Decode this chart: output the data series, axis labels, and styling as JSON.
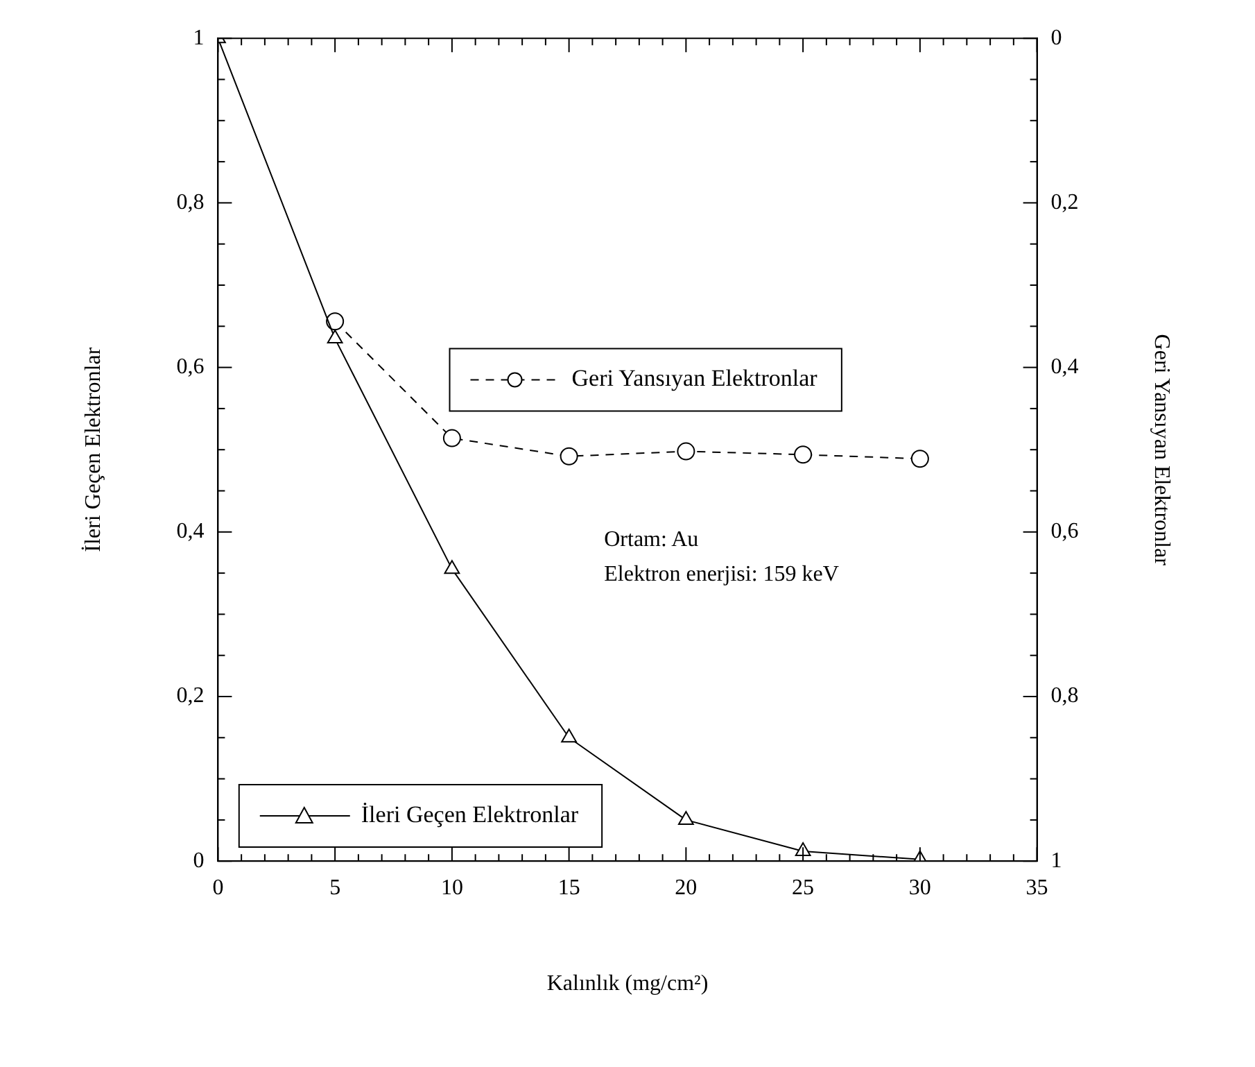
{
  "chart_data": {
    "type": "line",
    "xlabel": "Kalınlık (mg/cm²)",
    "ylabel": "İleri Geçen Elektronlar",
    "y2label": "Geri Yansıyan Elektronlar",
    "annotations": [
      "Ortam: Au",
      "Elektron enerjisi: 159 keV"
    ],
    "legend": "bottom left",
    "x": [
      0,
      5,
      10,
      15,
      20,
      25,
      30
    ],
    "series": [
      {
        "name": "İleri Geçen Elektronlar",
        "color": "#000000",
        "marker": "triangle",
        "line_style": "solid",
        "values": [
          1,
          0.635,
          0.355,
          0.15,
          0.05,
          0.012,
          0.002
        ]
      },
      {
        "name": "Geri Yansıyan Elektronlar",
        "color": "#000000",
        "marker": "circle",
        "line_style": "dashed",
        "axis": "y2",
        "x": [
          5,
          10,
          15,
          20,
          25,
          30
        ],
        "values": [
          0.344,
          0.486,
          0.508,
          0.502,
          0.506,
          0.511
        ]
      }
    ],
    "xlim": [
      0,
      35
    ],
    "xticks": [
      0,
      {
        "value": 1,
        "label": null
      },
      {
        "value": 2,
        "label": null
      },
      {
        "value": 3,
        "label": null
      },
      {
        "value": 4,
        "label": null
      },
      5,
      {
        "value": 6,
        "label": null
      },
      {
        "value": 7,
        "label": null
      },
      {
        "value": 8,
        "label": null
      },
      {
        "value": 9,
        "label": null
      },
      10,
      {
        "value": 11,
        "label": null
      },
      {
        "value": 12,
        "label": null
      },
      {
        "value": 13,
        "label": null
      },
      {
        "value": 14,
        "label": null
      },
      15,
      {
        "value": 16,
        "label": null
      },
      {
        "value": 17,
        "label": null
      },
      {
        "value": 18,
        "label": null
      },
      {
        "value": 19,
        "label": null
      },
      20,
      {
        "value": 21,
        "label": null
      },
      {
        "value": 22,
        "label": null
      },
      {
        "value": 23,
        "label": null
      },
      {
        "value": 24,
        "label": null
      },
      25,
      {
        "value": 26,
        "label": null
      },
      {
        "value": 27,
        "label": null
      },
      {
        "value": 28,
        "label": null
      },
      {
        "value": 29,
        "label": null
      },
      30,
      {
        "value": 31,
        "label": null
      },
      {
        "value": 32,
        "label": null
      },
      {
        "value": 33,
        "label": null
      },
      {
        "value": 34,
        "label": null
      },
      35
    ],
    "ylim": [
      0,
      1
    ],
    "yticks": [
      0,
      {
        "value": 0.05,
        "label": null
      },
      {
        "value": 0.1,
        "label": null
      },
      {
        "value": 0.15,
        "label": null
      },
      {
        "value": 0.2,
        "label": "0,2"
      },
      {
        "value": 0.25,
        "label": null
      },
      {
        "value": 0.3,
        "label": null
      },
      {
        "value": 0.35,
        "label": null
      },
      {
        "value": 0.4,
        "label": "0,4"
      },
      {
        "value": 0.45,
        "label": null
      },
      {
        "value": 0.5,
        "label": null
      },
      {
        "value": 0.55,
        "label": null
      },
      {
        "value": 0.6,
        "label": "0,6"
      },
      {
        "value": 0.65,
        "label": null
      },
      {
        "value": 0.7,
        "label": null
      },
      {
        "value": 0.75,
        "label": null
      },
      {
        "value": 0.8,
        "label": "0,8"
      },
      {
        "value": 0.85,
        "label": null
      },
      {
        "value": 0.9,
        "label": null
      },
      {
        "value": 0.95,
        "label": null
      },
      1
    ],
    "y2lim": [
      1,
      0
    ],
    "y2ticks": [
      0,
      {
        "value": 0.05,
        "label": null
      },
      {
        "value": 0.1,
        "label": null
      },
      {
        "value": 0.15,
        "label": null
      },
      {
        "value": 0.2,
        "label": "0,2"
      },
      {
        "value": 0.25,
        "label": null
      },
      {
        "value": 0.3,
        "label": null
      },
      {
        "value": 0.35,
        "label": null
      },
      {
        "value": 0.4,
        "label": "0,4"
      },
      {
        "value": 0.45,
        "label": null
      },
      {
        "value": 0.5,
        "label": null
      },
      {
        "value": 0.55,
        "label": null
      },
      {
        "value": 0.6,
        "label": "0,6"
      },
      {
        "value": 0.65,
        "label": null
      },
      {
        "value": 0.7,
        "label": null
      },
      {
        "value": 0.75,
        "label": null
      },
      {
        "value": 0.8,
        "label": "0,8"
      },
      {
        "value": 0.85,
        "label": null
      },
      {
        "value": 0.9,
        "label": null
      },
      {
        "value": 0.95,
        "label": null
      },
      1
    ]
  }
}
